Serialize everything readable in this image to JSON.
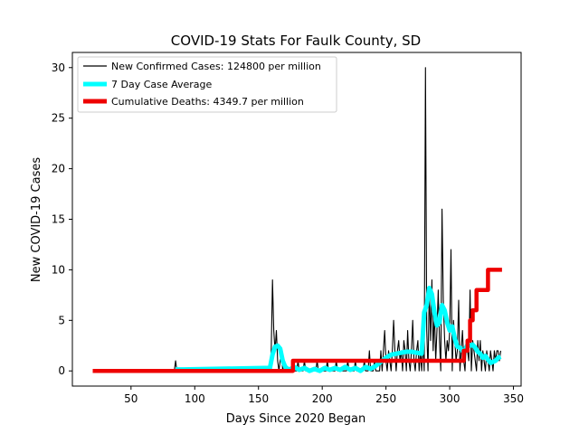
{
  "chart_data": {
    "type": "line",
    "title": "COVID-19 Stats For Faulk County, SD",
    "xlabel": "Days Since 2020 Began",
    "ylabel": "New COVID-19 Cases",
    "xlim": [
      4.0,
      356.0
    ],
    "ylim": [
      -1.5,
      31.5
    ],
    "xticks": [
      50,
      100,
      150,
      200,
      250,
      300,
      350
    ],
    "yticks": [
      0,
      5,
      10,
      15,
      20,
      25,
      30
    ],
    "grid": false,
    "legend_position": "top-left",
    "series": [
      {
        "name": "New Confirmed Cases: 124800 per million",
        "color": "#000000",
        "points": [
          [
            20,
            0
          ],
          [
            84,
            0
          ],
          [
            85,
            1
          ],
          [
            86,
            0
          ],
          [
            159,
            0
          ],
          [
            160,
            2
          ],
          [
            161,
            9
          ],
          [
            162,
            4
          ],
          [
            163,
            2
          ],
          [
            164,
            4
          ],
          [
            165,
            1
          ],
          [
            166,
            0
          ],
          [
            167,
            1
          ],
          [
            168,
            2
          ],
          [
            169,
            0
          ],
          [
            170,
            1
          ],
          [
            171,
            0
          ],
          [
            180,
            0
          ],
          [
            181,
            1
          ],
          [
            182,
            0
          ],
          [
            185,
            0
          ],
          [
            186,
            1
          ],
          [
            187,
            0
          ],
          [
            195,
            0
          ],
          [
            196,
            1
          ],
          [
            197,
            0
          ],
          [
            203,
            0
          ],
          [
            204,
            1
          ],
          [
            205,
            0
          ],
          [
            210,
            0
          ],
          [
            211,
            1
          ],
          [
            212,
            0
          ],
          [
            219,
            0
          ],
          [
            220,
            1
          ],
          [
            221,
            0
          ],
          [
            225,
            0
          ],
          [
            226,
            1
          ],
          [
            227,
            0
          ],
          [
            232,
            0
          ],
          [
            233,
            1
          ],
          [
            234,
            0
          ],
          [
            236,
            0
          ],
          [
            237,
            2
          ],
          [
            238,
            0
          ],
          [
            240,
            0
          ],
          [
            241,
            1
          ],
          [
            242,
            0
          ],
          [
            245,
            0
          ],
          [
            246,
            2
          ],
          [
            247,
            0
          ],
          [
            248,
            2
          ],
          [
            249,
            4
          ],
          [
            250,
            1
          ],
          [
            251,
            0
          ],
          [
            252,
            2
          ],
          [
            253,
            1
          ],
          [
            254,
            0
          ],
          [
            255,
            2
          ],
          [
            256,
            5
          ],
          [
            257,
            2
          ],
          [
            258,
            0
          ],
          [
            259,
            2
          ],
          [
            260,
            3
          ],
          [
            261,
            1
          ],
          [
            262,
            2
          ],
          [
            263,
            0
          ],
          [
            264,
            3
          ],
          [
            265,
            2
          ],
          [
            266,
            0
          ],
          [
            267,
            4
          ],
          [
            268,
            1
          ],
          [
            269,
            0
          ],
          [
            270,
            2
          ],
          [
            271,
            5
          ],
          [
            272,
            1
          ],
          [
            273,
            0
          ],
          [
            274,
            2
          ],
          [
            275,
            3
          ],
          [
            276,
            0
          ],
          [
            277,
            2
          ],
          [
            278,
            0
          ],
          [
            279,
            3
          ],
          [
            280,
            0
          ],
          [
            281,
            30
          ],
          [
            282,
            4
          ],
          [
            283,
            0
          ],
          [
            284,
            8
          ],
          [
            285,
            3
          ],
          [
            286,
            9
          ],
          [
            287,
            2
          ],
          [
            288,
            6
          ],
          [
            289,
            1
          ],
          [
            290,
            4
          ],
          [
            291,
            8
          ],
          [
            292,
            3
          ],
          [
            293,
            0
          ],
          [
            294,
            16
          ],
          [
            295,
            7
          ],
          [
            296,
            3
          ],
          [
            297,
            1
          ],
          [
            298,
            3
          ],
          [
            299,
            2
          ],
          [
            300,
            4
          ],
          [
            301,
            12
          ],
          [
            302,
            0
          ],
          [
            303,
            5
          ],
          [
            304,
            3
          ],
          [
            305,
            1
          ],
          [
            306,
            2
          ],
          [
            307,
            7
          ],
          [
            308,
            0
          ],
          [
            309,
            2
          ],
          [
            310,
            4
          ],
          [
            311,
            1
          ],
          [
            312,
            0
          ],
          [
            313,
            3
          ],
          [
            314,
            2
          ],
          [
            315,
            1
          ],
          [
            316,
            8
          ],
          [
            317,
            0
          ],
          [
            318,
            3
          ],
          [
            319,
            2
          ],
          [
            320,
            1
          ],
          [
            321,
            0
          ],
          [
            322,
            3
          ],
          [
            323,
            1
          ],
          [
            324,
            3
          ],
          [
            325,
            0
          ],
          [
            326,
            2
          ],
          [
            327,
            1
          ],
          [
            328,
            0
          ],
          [
            329,
            2
          ],
          [
            330,
            1
          ],
          [
            331,
            0
          ],
          [
            332,
            2
          ],
          [
            333,
            1
          ],
          [
            334,
            0
          ],
          [
            335,
            2
          ],
          [
            336,
            1
          ],
          [
            337,
            2
          ],
          [
            338,
            2
          ],
          [
            339,
            1
          ],
          [
            340,
            2
          ]
        ]
      },
      {
        "name": "7 Day Case Average",
        "color": "#00ffff",
        "points": [
          [
            85,
            0.15
          ],
          [
            91,
            0.15
          ],
          [
            159,
            0.3
          ],
          [
            161,
            1.6
          ],
          [
            163,
            2.4
          ],
          [
            165,
            2.5
          ],
          [
            167,
            2.2
          ],
          [
            169,
            1.0
          ],
          [
            171,
            0.4
          ],
          [
            174,
            0.1
          ],
          [
            178,
            0.4
          ],
          [
            182,
            0.1
          ],
          [
            186,
            0.3
          ],
          [
            190,
            0.0
          ],
          [
            194,
            0.2
          ],
          [
            198,
            0.0
          ],
          [
            202,
            0.3
          ],
          [
            206,
            0.1
          ],
          [
            210,
            0.3
          ],
          [
            214,
            0.1
          ],
          [
            218,
            0.4
          ],
          [
            222,
            0.1
          ],
          [
            226,
            0.3
          ],
          [
            230,
            0.0
          ],
          [
            234,
            0.4
          ],
          [
            238,
            0.2
          ],
          [
            242,
            0.5
          ],
          [
            246,
            0.9
          ],
          [
            250,
            1.3
          ],
          [
            254,
            1.6
          ],
          [
            258,
            1.7
          ],
          [
            262,
            1.8
          ],
          [
            266,
            1.9
          ],
          [
            270,
            1.9
          ],
          [
            274,
            1.8
          ],
          [
            278,
            1.7
          ],
          [
            280,
            5.8
          ],
          [
            282,
            6.5
          ],
          [
            284,
            8.2
          ],
          [
            286,
            7.6
          ],
          [
            288,
            5.8
          ],
          [
            290,
            4.5
          ],
          [
            292,
            4.8
          ],
          [
            294,
            6.5
          ],
          [
            296,
            6.0
          ],
          [
            298,
            4.8
          ],
          [
            300,
            4.0
          ],
          [
            302,
            4.4
          ],
          [
            304,
            3.2
          ],
          [
            306,
            2.4
          ],
          [
            308,
            2.3
          ],
          [
            310,
            2.0
          ],
          [
            312,
            2.1
          ],
          [
            314,
            2.6
          ],
          [
            316,
            2.5
          ],
          [
            318,
            2.6
          ],
          [
            320,
            2.3
          ],
          [
            322,
            1.9
          ],
          [
            324,
            1.7
          ],
          [
            326,
            1.3
          ],
          [
            328,
            1.5
          ],
          [
            330,
            1.1
          ],
          [
            332,
            0.8
          ],
          [
            334,
            0.9
          ],
          [
            336,
            1.0
          ],
          [
            338,
            1.3
          ],
          [
            340,
            1.4
          ]
        ]
      },
      {
        "name": "Cumulative Deaths: 4349.7 per million",
        "color": "#ee0000",
        "points": [
          [
            20,
            0
          ],
          [
            177,
            0
          ],
          [
            177,
            1
          ],
          [
            311,
            1
          ],
          [
            311,
            2
          ],
          [
            314,
            2
          ],
          [
            314,
            3
          ],
          [
            316,
            3
          ],
          [
            316,
            5
          ],
          [
            318,
            5
          ],
          [
            318,
            6
          ],
          [
            321,
            6
          ],
          [
            321,
            8
          ],
          [
            330,
            8
          ],
          [
            330,
            10
          ],
          [
            341,
            10
          ]
        ]
      }
    ]
  }
}
